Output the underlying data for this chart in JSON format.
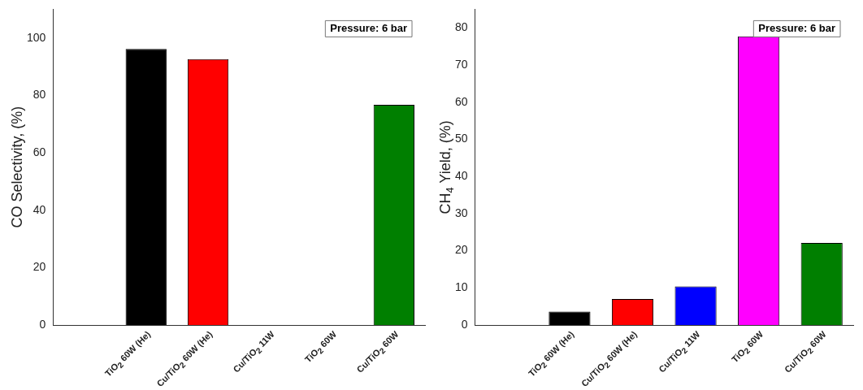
{
  "chart_data": [
    {
      "type": "bar",
      "ylabel": "CO Selectivity, (%)",
      "categories": [
        null,
        "TiO$_{2}$ 60W (He)",
        "Cu/TiO$_{2}$ 60W (He)",
        "Cu/TiO$_{2}$ 11W",
        "TiO$_{2}$ 60W",
        "Cu/TiO$_{2}$ 60W"
      ],
      "values": [
        null,
        96.2,
        92.6,
        0,
        0,
        76.7
      ],
      "colors": [
        "#000000",
        "#000000",
        "#ff0000",
        "#0000ff",
        "#ff00ff",
        "#007f00"
      ],
      "ylim": [
        0,
        110
      ],
      "yticks": [
        0,
        20,
        40,
        60,
        80,
        100
      ],
      "grid": false,
      "legend": false,
      "annotations": [
        "Pressure: 6 bar"
      ]
    },
    {
      "type": "bar",
      "ylabel": "CH$_{4}$ Yield, (%)",
      "categories": [
        null,
        "TiO$_{2}$ 60W (He)",
        "Cu/TiO$_{2}$ 60W (He)",
        "Cu/TiO$_{2}$ 11W",
        "TiO$_{2}$ 60W",
        "Cu/TiO$_{2}$ 60W"
      ],
      "values": [
        null,
        3.6,
        7.0,
        10.4,
        77.7,
        22.1
      ],
      "colors": [
        "#000000",
        "#000000",
        "#ff0000",
        "#0000ff",
        "#ff00ff",
        "#007f00"
      ],
      "ylim": [
        0,
        85
      ],
      "yticks": [
        0,
        10,
        20,
        30,
        40,
        50,
        60,
        70,
        80
      ],
      "grid": false,
      "legend": false,
      "annotations": [
        "Pressure: 6 bar"
      ]
    }
  ]
}
